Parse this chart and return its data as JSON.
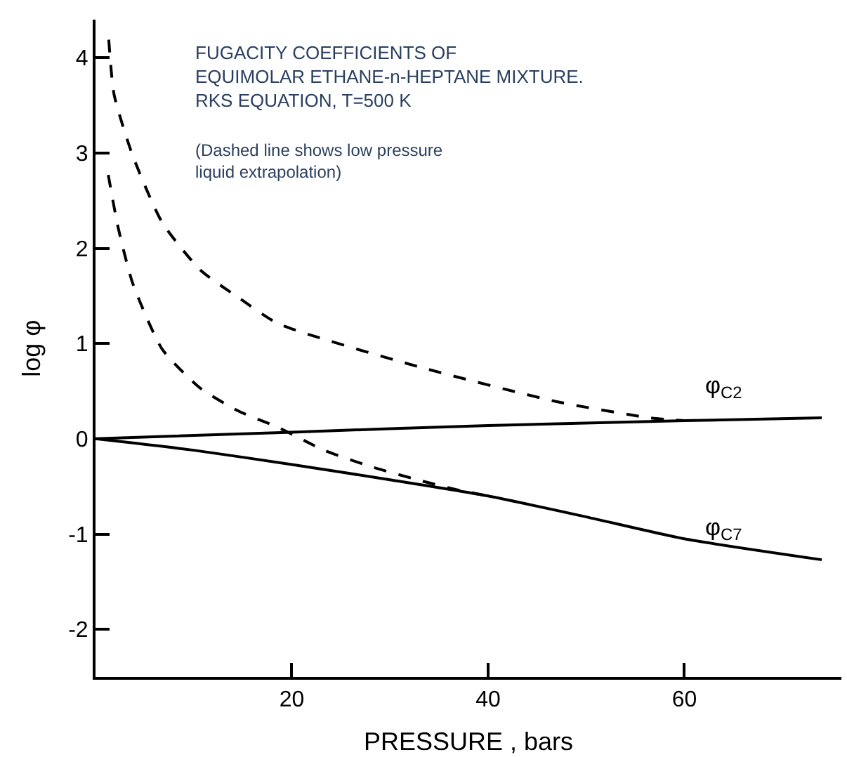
{
  "chart_data": {
    "type": "line",
    "xlabel": "PRESSURE , bars",
    "ylabel": "log φ",
    "xlim": [
      0,
      76
    ],
    "xticks": [
      20,
      40,
      60
    ],
    "ylim": [
      -2.5,
      4.4
    ],
    "yticks": [
      -2,
      -1,
      0,
      1,
      2,
      3,
      4
    ],
    "legend": false,
    "marker": "none",
    "annotations": [
      "FUGACITY COEFFICIENTS OF\nEQUIMOLAR ETHANE-n-HEPTANE MIXTURE.\nRKS EQUATION, T=500 K",
      "(Dashed line shows low pressure\nliquid extrapolation)"
    ],
    "series": [
      {
        "name": "φ$_{C2}$",
        "color": "#000000",
        "line_style": "solid",
        "x": [
          0,
          20,
          40,
          60,
          74
        ],
        "values": [
          0,
          0.07,
          0.14,
          0.19,
          0.22
        ]
      },
      {
        "name": "φ$_{C7}$",
        "color": "#000000",
        "line_style": "solid",
        "x": [
          0,
          10,
          20,
          30,
          40,
          50,
          60,
          74
        ],
        "values": [
          0,
          -0.12,
          -0.27,
          -0.43,
          -0.6,
          -0.82,
          -1.05,
          -1.27
        ]
      },
      {
        "color": "#000000",
        "line_style": "dashed",
        "x": [
          1.35,
          1.9,
          3.8,
          6.8,
          10.7,
          14.6,
          18.6,
          32.8,
          47,
          56.5,
          60
        ],
        "values": [
          4.19,
          3.61,
          2.97,
          2.27,
          1.77,
          1.48,
          1.21,
          0.76,
          0.39,
          0.22,
          0.19
        ]
      },
      {
        "color": "#000000",
        "line_style": "dashed",
        "x": [
          1.3,
          2.3,
          3.8,
          6.8,
          10.7,
          14.6,
          18.6,
          23.3,
          28,
          32.8,
          36.6,
          40
        ],
        "values": [
          2.77,
          2.22,
          1.63,
          0.94,
          0.53,
          0.29,
          0.12,
          -0.12,
          -0.29,
          -0.43,
          -0.53,
          -0.6
        ]
      }
    ]
  }
}
